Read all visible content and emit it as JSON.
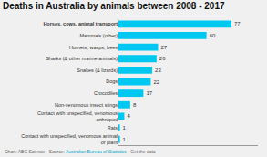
{
  "chart_data": {
    "type": "bar",
    "orientation": "horizontal",
    "title": "Deaths in Australia by animals between 2008 - 2017",
    "categories": [
      "Contact with unspecified, venomous animal\nor plant",
      "Rats",
      "Contact with unspecified, venomous\narthropod",
      "Non-venomous insect stings",
      "Crocodiles",
      "Dogs",
      "Snakes (& lizards)",
      "Sharks (& other marine animals)",
      "Hornets, wasps, bees",
      "Mammals (other)",
      "Horses, cows, animal transport"
    ],
    "values": [
      1,
      1,
      4,
      8,
      17,
      22,
      23,
      26,
      27,
      60,
      77
    ],
    "color": "#00c8f0",
    "xlim": [
      0,
      95
    ],
    "data_labels": true,
    "tick_labels": "y",
    "grid": false,
    "annotations": [
      "Chart: ABC Science - Source: ",
      "Australian Bureau of Statistics",
      " - Get the data"
    ]
  }
}
